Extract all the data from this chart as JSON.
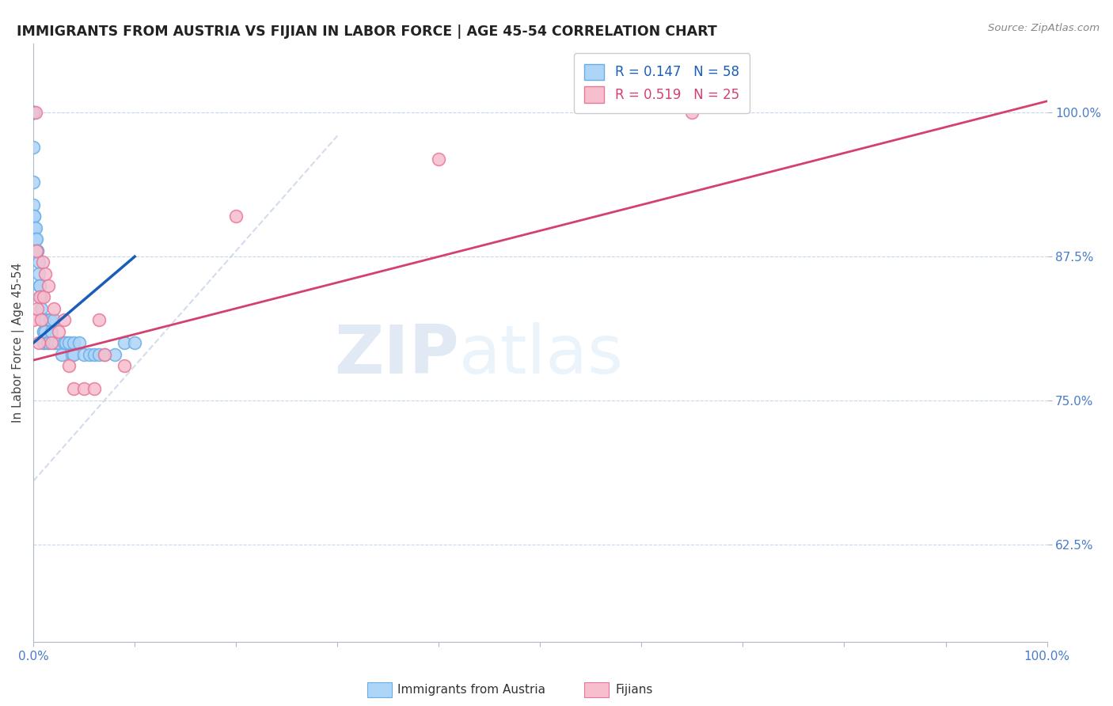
{
  "title": "IMMIGRANTS FROM AUSTRIA VS FIJIAN IN LABOR FORCE | AGE 45-54 CORRELATION CHART",
  "source": "Source: ZipAtlas.com",
  "ylabel": "In Labor Force | Age 45-54",
  "ytick_labels": [
    "62.5%",
    "75.0%",
    "87.5%",
    "100.0%"
  ],
  "ytick_values": [
    0.625,
    0.75,
    0.875,
    1.0
  ],
  "xlim": [
    0.0,
    1.0
  ],
  "ylim": [
    0.54,
    1.06
  ],
  "austria_color": "#aed4f7",
  "austria_edge": "#6aaee8",
  "fijian_color": "#f7bece",
  "fijian_edge": "#e87898",
  "austria_line_color": "#1a5eb8",
  "fijian_line_color": "#d44070",
  "identity_line_color": "#c8d4e8",
  "R_austria": 0.147,
  "N_austria": 58,
  "R_fijian": 0.519,
  "N_fijian": 25,
  "legend_label_austria": "Immigrants from Austria",
  "legend_label_fijian": "Fijians",
  "watermark_zip": "ZIP",
  "watermark_atlas": "atlas",
  "austria_x": [
    0.0,
    0.0,
    0.0,
    0.0,
    0.0,
    0.0,
    0.0,
    0.0,
    0.0,
    0.001,
    0.001,
    0.001,
    0.002,
    0.002,
    0.003,
    0.003,
    0.004,
    0.004,
    0.005,
    0.005,
    0.006,
    0.006,
    0.007,
    0.008,
    0.008,
    0.009,
    0.01,
    0.01,
    0.01,
    0.01,
    0.01,
    0.012,
    0.012,
    0.014,
    0.015,
    0.016,
    0.017,
    0.018,
    0.02,
    0.02,
    0.022,
    0.025,
    0.028,
    0.03,
    0.032,
    0.035,
    0.038,
    0.04,
    0.04,
    0.045,
    0.05,
    0.055,
    0.06,
    0.065,
    0.07,
    0.08,
    0.09,
    0.1
  ],
  "austria_y": [
    1.0,
    1.0,
    1.0,
    1.0,
    1.0,
    1.0,
    0.97,
    0.94,
    0.92,
    0.91,
    0.91,
    0.9,
    0.9,
    0.89,
    0.89,
    0.88,
    0.88,
    0.88,
    0.87,
    0.86,
    0.85,
    0.85,
    0.84,
    0.84,
    0.83,
    0.82,
    0.82,
    0.81,
    0.81,
    0.8,
    0.8,
    0.82,
    0.81,
    0.8,
    0.8,
    0.82,
    0.82,
    0.81,
    0.82,
    0.8,
    0.8,
    0.8,
    0.79,
    0.8,
    0.8,
    0.8,
    0.79,
    0.8,
    0.79,
    0.8,
    0.79,
    0.79,
    0.79,
    0.79,
    0.79,
    0.79,
    0.8,
    0.8
  ],
  "fijian_x": [
    0.0,
    0.002,
    0.003,
    0.004,
    0.005,
    0.006,
    0.008,
    0.009,
    0.01,
    0.012,
    0.015,
    0.018,
    0.02,
    0.025,
    0.03,
    0.035,
    0.04,
    0.05,
    0.06,
    0.065,
    0.07,
    0.09,
    0.2,
    0.4,
    0.65
  ],
  "fijian_y": [
    0.82,
    1.0,
    0.88,
    0.83,
    0.8,
    0.84,
    0.82,
    0.87,
    0.84,
    0.86,
    0.85,
    0.8,
    0.83,
    0.81,
    0.82,
    0.78,
    0.76,
    0.76,
    0.76,
    0.82,
    0.79,
    0.78,
    0.91,
    0.96,
    1.0
  ],
  "austria_line_x": [
    0.0,
    0.1
  ],
  "austria_line_y": [
    0.8,
    0.875
  ],
  "fijian_line_x": [
    0.0,
    1.0
  ],
  "fijian_line_y": [
    0.785,
    1.01
  ],
  "identity_line_x": [
    0.0,
    0.3
  ],
  "identity_line_y": [
    0.68,
    0.98
  ]
}
